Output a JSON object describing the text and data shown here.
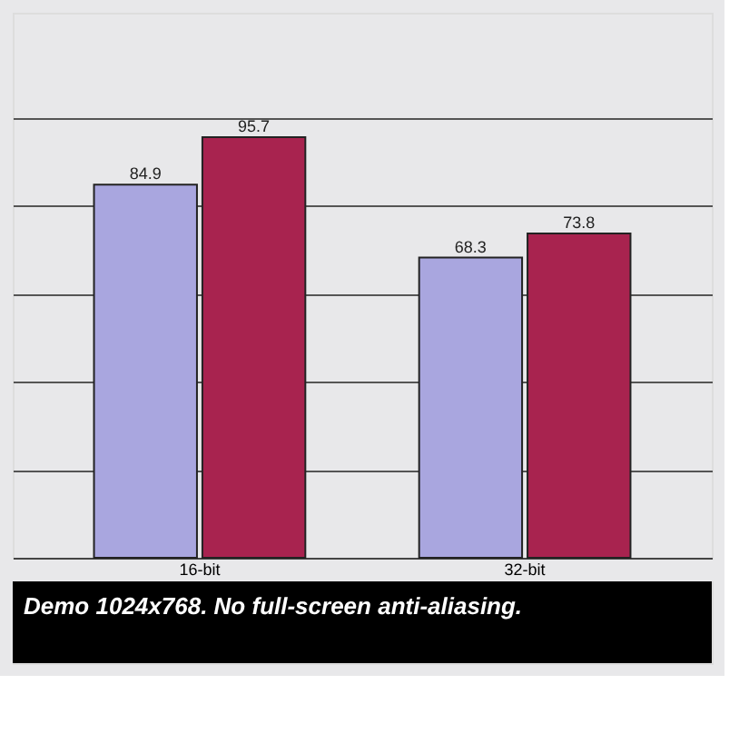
{
  "chart_data": {
    "type": "bar",
    "categories": [
      "16-bit",
      "32-bit"
    ],
    "series": [
      {
        "color": "#a9a6df",
        "values": [
          84.9,
          68.3
        ]
      },
      {
        "color": "#a8234f",
        "values": [
          95.7,
          73.8
        ]
      }
    ],
    "data_labels": true,
    "ylim": [
      0,
      124
    ],
    "yticks": [
      {
        "value": 20,
        "label": null
      },
      {
        "value": 40,
        "label": null
      },
      {
        "value": 60,
        "label": null
      },
      {
        "value": 80,
        "label": null
      },
      {
        "value": 100,
        "label": null
      }
    ],
    "grid": "y",
    "tick_labels": "x",
    "annotations": [
      "Demo 1024x768. No full-screen anti-aliasing."
    ]
  }
}
